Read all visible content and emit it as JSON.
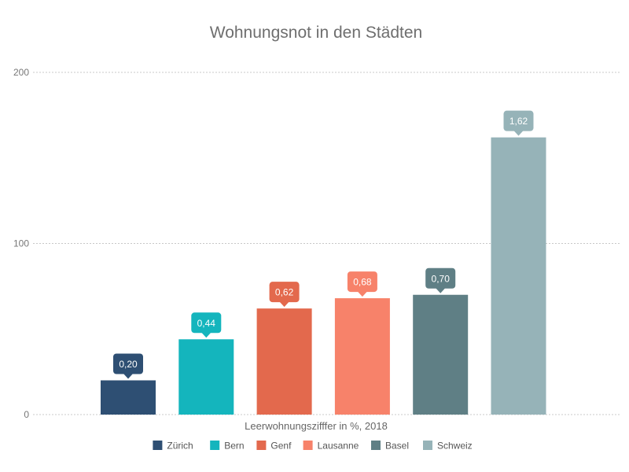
{
  "chart_data": {
    "type": "bar",
    "title": "Wohnungsnot in den Städten",
    "xlabel": "Leerwohnungszifffer in %, 2018",
    "ylabel": "",
    "ylim": [
      0,
      200
    ],
    "yticks": [
      "0",
      "100",
      "200"
    ],
    "grid": true,
    "legend_position": "bottom",
    "categories": [
      "Zürich",
      "Bern",
      "Genf",
      "Lausanne",
      "Basel",
      "Schweiz"
    ],
    "values": [
      20,
      44,
      62,
      68,
      70,
      162
    ],
    "data_labels": [
      "0,20",
      "0,44",
      "0,62",
      "0,68",
      "0,70",
      "1,62"
    ],
    "colors": [
      "#2e4f73",
      "#14b5bd",
      "#e3694d",
      "#f7826a",
      "#5f7f85",
      "#96b3b8"
    ]
  }
}
